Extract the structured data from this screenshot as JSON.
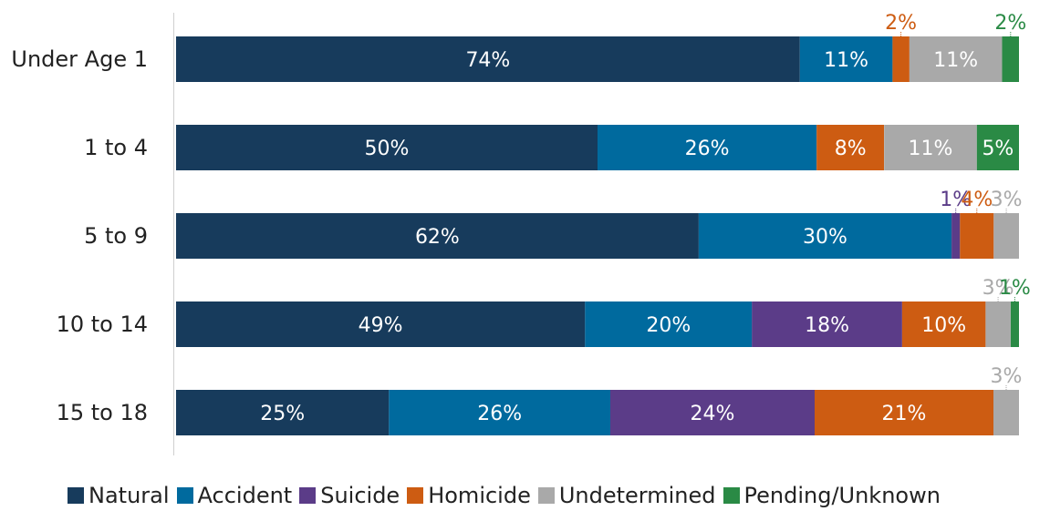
{
  "chart_data": {
    "type": "bar",
    "orientation": "horizontal",
    "stacked": true,
    "categories": [
      "Under Age 1",
      "1 to 4",
      "5 to 9",
      "10 to 14",
      "15 to 18"
    ],
    "series": [
      {
        "name": "Natural",
        "color": "#173b5c",
        "values": [
          74,
          50,
          62,
          49,
          25
        ],
        "labels": [
          "74%",
          "50%",
          "62%",
          "49%",
          "25%"
        ]
      },
      {
        "name": "Accident",
        "color": "#006a9e",
        "values": [
          11,
          26,
          30,
          20,
          26
        ],
        "labels": [
          "11%",
          "26%",
          "30%",
          "20%",
          "26%"
        ]
      },
      {
        "name": "Suicide",
        "color": "#5b3c88",
        "values": [
          0,
          0,
          1,
          18,
          24
        ],
        "labels": [
          "",
          "",
          "1%",
          "18%",
          "24%"
        ]
      },
      {
        "name": "Homicide",
        "color": "#cd5c12",
        "values": [
          2,
          8,
          4,
          10,
          21
        ],
        "labels": [
          "2%",
          "8%",
          "4%",
          "10%",
          "21%"
        ]
      },
      {
        "name": "Undetermined",
        "color": "#a9a9a9",
        "values": [
          11,
          11,
          3,
          3,
          3
        ],
        "labels": [
          "11%",
          "11%",
          "3%",
          "3%",
          "3%"
        ]
      },
      {
        "name": "Pending/Unknown",
        "color": "#2a8a45",
        "values": [
          2,
          5,
          0,
          1,
          0
        ],
        "labels": [
          "2%",
          "5%",
          "",
          "1%",
          ""
        ]
      }
    ],
    "xlim": [
      0,
      100
    ],
    "grid": false,
    "legend_position": "bottom"
  }
}
